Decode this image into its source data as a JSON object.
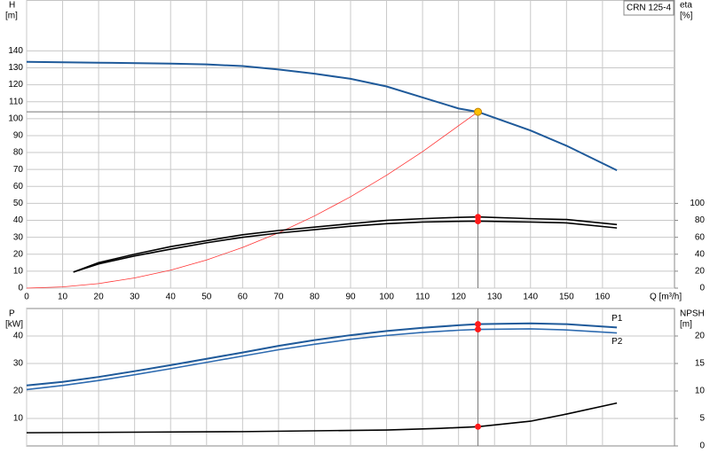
{
  "chart_data": [
    {
      "type": "line",
      "title": "CRN 125-4",
      "y_label": "H",
      "y_unit": "[m]",
      "y2_label": "eta",
      "y2_unit": "[%]",
      "x_label": "Q [m³/h]",
      "xlim": [
        0,
        180
      ],
      "xticks": [
        0,
        10,
        20,
        30,
        40,
        50,
        60,
        70,
        80,
        90,
        100,
        110,
        120,
        130,
        140,
        150,
        160
      ],
      "ylim": [
        0,
        170
      ],
      "yticks": [
        0,
        10,
        20,
        30,
        40,
        50,
        60,
        70,
        80,
        90,
        100,
        110,
        120,
        130,
        140
      ],
      "y2lim": [
        0,
        340
      ],
      "y2ticks": [
        0,
        20,
        40,
        60,
        80,
        100
      ],
      "grid": true,
      "duty_point": {
        "x": 125.4,
        "y": 104
      },
      "series": [
        {
          "color": "#1f5a9a",
          "x": [
            0,
            20,
            40,
            50,
            60,
            70,
            80,
            90,
            100,
            110,
            120,
            125.4,
            130,
            140,
            150,
            164
          ],
          "values": [
            133.5,
            133,
            132.5,
            132,
            131,
            129,
            126.5,
            123.5,
            119,
            112.5,
            106,
            104,
            100.5,
            93,
            84,
            69.5
          ]
        },
        {
          "color": "#ff3333",
          "x": [
            0,
            10,
            20,
            30,
            40,
            50,
            60,
            70,
            80,
            90,
            100,
            110,
            120,
            125.4
          ],
          "values": [
            0,
            0.7,
            2.7,
            6,
            10.6,
            16.6,
            24,
            32.6,
            42.6,
            53.9,
            66.6,
            80.5,
            95.8,
            104
          ]
        },
        {
          "color": "#000000",
          "axis": "y2",
          "x": [
            13,
            20,
            30,
            40,
            50,
            60,
            70,
            80,
            90,
            100,
            110,
            120,
            125.4,
            140,
            150,
            164
          ],
          "values": [
            19,
            30,
            40,
            49,
            56,
            63,
            68,
            72,
            76,
            80,
            82,
            83.5,
            84,
            82,
            81,
            75
          ]
        },
        {
          "color": "#000000",
          "axis": "y2",
          "x": [
            13,
            20,
            30,
            40,
            50,
            60,
            70,
            80,
            90,
            100,
            110,
            120,
            125.4,
            140,
            150,
            164
          ],
          "values": [
            19,
            28.5,
            38,
            46,
            53.5,
            60,
            65,
            69,
            73,
            76,
            78,
            78.8,
            79,
            78,
            77,
            71
          ]
        }
      ]
    },
    {
      "type": "line",
      "y_label": "P",
      "y_unit": "[kW]",
      "y2_label": "NPSH",
      "y2_unit": "[m]",
      "xlim": [
        0,
        180
      ],
      "ylim": [
        0,
        50
      ],
      "yticks": [
        10,
        20,
        30,
        40
      ],
      "y2lim": [
        0,
        25
      ],
      "y2ticks": [
        0,
        5,
        10,
        15,
        20
      ],
      "grid": true,
      "series": [
        {
          "name": "P1",
          "color": "#1f5a9a",
          "x": [
            0,
            10,
            20,
            30,
            40,
            50,
            60,
            70,
            80,
            90,
            100,
            110,
            120,
            125.4,
            140,
            150,
            164
          ],
          "values": [
            22,
            23.3,
            25.1,
            27.2,
            29.4,
            31.7,
            34,
            36.4,
            38.5,
            40.3,
            41.8,
            43,
            43.9,
            44.3,
            44.6,
            44.3,
            43.1
          ]
        },
        {
          "name": "P2",
          "color": "#2e6bb0",
          "x": [
            0,
            10,
            20,
            30,
            40,
            50,
            60,
            70,
            80,
            90,
            100,
            110,
            120,
            125.4,
            140,
            150,
            164
          ],
          "values": [
            20.5,
            22,
            23.8,
            25.9,
            28.1,
            30.4,
            32.7,
            35,
            37,
            38.8,
            40.2,
            41.3,
            42.1,
            42.4,
            42.6,
            42.2,
            41.1
          ]
        },
        {
          "color": "#000000",
          "axis": "y2",
          "x": [
            0,
            60,
            100,
            115,
            125.4,
            140,
            150,
            164
          ],
          "values": [
            2.4,
            2.6,
            2.9,
            3.2,
            3.5,
            4.5,
            5.8,
            7.8
          ]
        }
      ]
    }
  ]
}
